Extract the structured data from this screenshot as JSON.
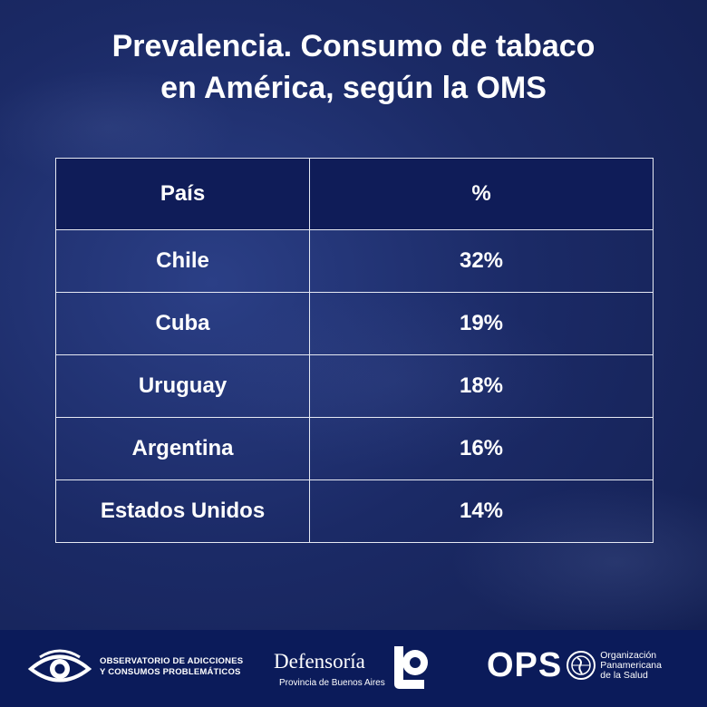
{
  "title_lines": [
    "Prevalencia. Consumo de tabaco",
    "en América, según la OMS"
  ],
  "table": {
    "headers": [
      "País",
      "%"
    ],
    "rows": [
      [
        "Chile",
        "32%"
      ],
      [
        "Cuba",
        "19%"
      ],
      [
        "Uruguay",
        "18%"
      ],
      [
        "Argentina",
        "16%"
      ],
      [
        "Estados Unidos",
        "14%"
      ]
    ]
  },
  "footer": {
    "logo1_lines": [
      "OBSERVATORIO DE ADICCIONES",
      "Y CONSUMOS PROBLEMÁTICOS"
    ],
    "logo2_name": "Defensoría",
    "logo2_sub": "Provincia de Buenos Aires",
    "logo3_abbr": "OPS",
    "logo3_lines": [
      "Organización",
      "Panamericana",
      "de la Salud"
    ]
  },
  "colors": {
    "background": "#1b2a66",
    "header_fill": "#0f1c58",
    "footer": "#0b1b5a",
    "text": "#ffffff"
  }
}
